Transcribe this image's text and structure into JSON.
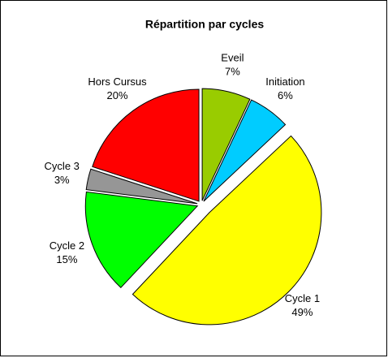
{
  "chart_data": {
    "type": "pie",
    "title": "Répartition par cycles",
    "categories": [
      "Eveil",
      "Initiation",
      "Cycle 1",
      "Cycle 2",
      "Cycle 3",
      "Hors Cursus"
    ],
    "values": [
      7,
      6,
      49,
      15,
      3,
      20
    ],
    "value_labels": [
      "7%",
      "6%",
      "49%",
      "15%",
      "3%",
      "20%"
    ],
    "colors": [
      "#99cc00",
      "#00ccff",
      "#ffff00",
      "#00ff00",
      "#969696",
      "#ff0000"
    ]
  }
}
